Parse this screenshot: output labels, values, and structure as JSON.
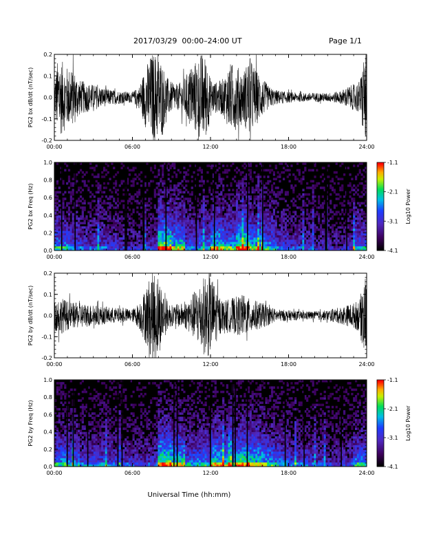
{
  "header": {
    "title": "2017/03/29  00:00–24:00 UT",
    "page": "Page 1/1"
  },
  "chart_data": [
    {
      "type": "line",
      "id": "bx",
      "ylabel": "PG2 bx dB/dt (nT/sec)",
      "xlim": [
        0,
        24
      ],
      "ylim": [
        -0.2,
        0.2
      ],
      "yticks": [
        "-0.2",
        "-0.1",
        "0.0",
        "0.1",
        "0.2"
      ],
      "xticks": [
        "00:00",
        "06:00",
        "12:00",
        "18:00",
        "24:00"
      ],
      "envelope": {
        "hours": [
          0,
          0.3,
          1,
          1.5,
          2,
          2.5,
          3,
          3.5,
          4,
          5,
          6,
          6.5,
          7,
          7.5,
          7.8,
          8.2,
          8.6,
          9,
          9.5,
          10,
          10.5,
          11,
          11.3,
          11.7,
          12,
          12.5,
          13,
          13.5,
          14,
          14.5,
          15,
          15.5,
          16,
          16.5,
          17,
          17.5,
          18,
          19,
          20,
          21,
          22,
          22.5,
          23,
          23.5,
          23.8,
          24
        ],
        "amplitude": [
          0.08,
          0.19,
          0.14,
          0.13,
          0.08,
          0.07,
          0.06,
          0.05,
          0.04,
          0.03,
          0.025,
          0.05,
          0.14,
          0.21,
          0.21,
          0.18,
          0.1,
          0.07,
          0.06,
          0.09,
          0.15,
          0.18,
          0.21,
          0.19,
          0.09,
          0.07,
          0.09,
          0.16,
          0.15,
          0.12,
          0.19,
          0.13,
          0.09,
          0.05,
          0.035,
          0.03,
          0.025,
          0.02,
          0.022,
          0.02,
          0.03,
          0.05,
          0.06,
          0.08,
          0.21,
          0.21
        ]
      }
    },
    {
      "type": "heatmap",
      "id": "bx-spec",
      "ylabel": "PG2 bx Freq (Hz)",
      "xlim": [
        0,
        24
      ],
      "ylim": [
        0,
        1
      ],
      "yticks": [
        "0.0",
        "0.2",
        "0.4",
        "0.6",
        "0.8",
        "1.0"
      ],
      "xticks": [
        "00:00",
        "06:00",
        "12:00",
        "18:00",
        "24:00"
      ],
      "colorbar": {
        "label": "Log10 Power",
        "min": -4.1,
        "max": -1.1,
        "ticks": [
          "-1.1",
          "-2.1",
          "-3.1",
          "-4.1"
        ]
      },
      "activity": [
        0.55,
        0.45,
        0.38,
        0.4,
        0.35,
        0.3,
        0.28,
        0.3,
        0.85,
        0.7,
        0.45,
        0.5,
        0.72,
        0.6,
        0.8,
        0.65,
        0.55,
        0.42,
        0.35,
        0.32,
        0.28,
        0.25,
        0.28,
        0.5
      ]
    },
    {
      "type": "line",
      "id": "by",
      "ylabel": "PG2 by dB/dt (nT/sec)",
      "xlim": [
        0,
        24
      ],
      "ylim": [
        -0.2,
        0.2
      ],
      "yticks": [
        "-0.2",
        "-0.1",
        "0.0",
        "0.1",
        "0.2"
      ],
      "xticks": [
        "00:00",
        "06:00",
        "12:00",
        "18:00",
        "24:00"
      ],
      "envelope": {
        "hours": [
          0,
          0.4,
          1,
          1.5,
          2,
          3,
          4,
          5,
          6,
          6.5,
          7,
          7.5,
          7.9,
          8.3,
          8.7,
          9,
          10,
          10.5,
          11,
          11.4,
          11.8,
          12.2,
          12.6,
          13,
          13.5,
          14,
          14.5,
          15,
          15.5,
          16,
          17,
          18,
          19,
          20,
          21,
          22,
          22.5,
          23,
          23.5,
          23.8,
          24
        ],
        "amplitude": [
          0.07,
          0.09,
          0.07,
          0.06,
          0.06,
          0.05,
          0.04,
          0.035,
          0.03,
          0.06,
          0.13,
          0.21,
          0.21,
          0.13,
          0.07,
          0.05,
          0.06,
          0.09,
          0.14,
          0.18,
          0.2,
          0.17,
          0.1,
          0.07,
          0.08,
          0.09,
          0.1,
          0.08,
          0.07,
          0.06,
          0.03,
          0.025,
          0.02,
          0.02,
          0.025,
          0.04,
          0.05,
          0.06,
          0.08,
          0.2,
          0.18
        ]
      }
    },
    {
      "type": "heatmap",
      "id": "by-spec",
      "ylabel": "PG2 by Freq (Hz)",
      "xlim": [
        0,
        24
      ],
      "ylim": [
        0,
        1
      ],
      "yticks": [
        "0.0",
        "0.2",
        "0.4",
        "0.6",
        "0.8",
        "1.0"
      ],
      "xticks": [
        "00:00",
        "06:00",
        "12:00",
        "18:00",
        "24:00"
      ],
      "colorbar": {
        "label": "Log10 Power",
        "min": -4.1,
        "max": -1.1,
        "ticks": [
          "-1.1",
          "-2.1",
          "-3.1",
          "-4.1"
        ]
      },
      "activity": [
        0.55,
        0.5,
        0.42,
        0.45,
        0.38,
        0.35,
        0.32,
        0.35,
        0.85,
        0.72,
        0.5,
        0.55,
        0.75,
        0.62,
        0.78,
        0.7,
        0.6,
        0.5,
        0.4,
        0.38,
        0.33,
        0.3,
        0.32,
        0.55
      ]
    }
  ],
  "xlabel": "Universal Time (hh:mm)"
}
